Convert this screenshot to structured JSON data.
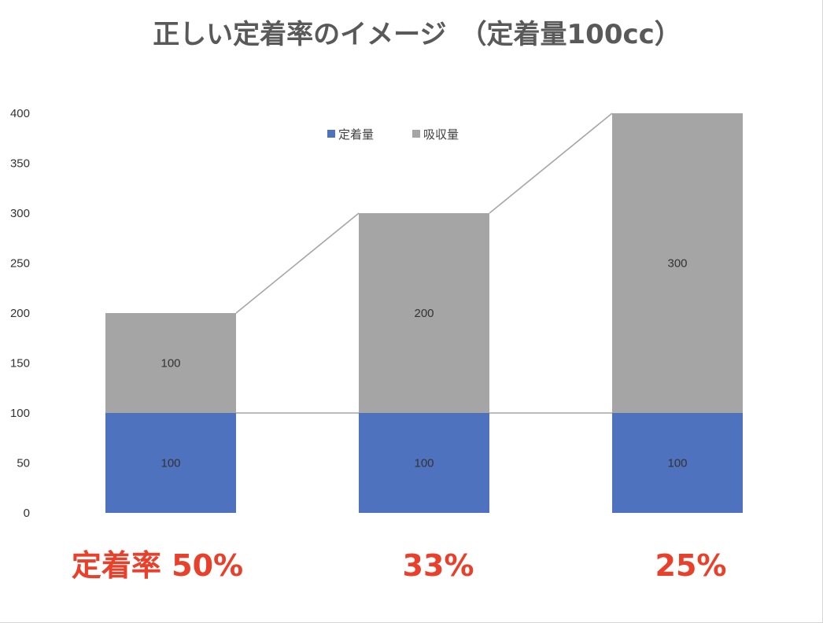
{
  "chart_data": {
    "type": "bar",
    "stacked": true,
    "title": "正しい定着率のイメージ　（定着量100cc）",
    "categories": [
      "",
      "",
      ""
    ],
    "series": [
      {
        "name": "定着量",
        "values": [
          100,
          100,
          100
        ],
        "color": "#4e72be"
      },
      {
        "name": "吸収量",
        "values": [
          100,
          200,
          300
        ],
        "color": "#a5a5a5"
      }
    ],
    "ylim": [
      0,
      400
    ],
    "yticks": [
      0,
      50,
      100,
      150,
      200,
      250,
      300,
      350,
      400
    ],
    "grid": false,
    "series_lines": true,
    "series_line_color": "#a6a6a6",
    "legend": "top-center",
    "annotations": [
      "定着率 50%",
      "33%",
      "25%"
    ],
    "annotation_color": "#e8402a"
  }
}
